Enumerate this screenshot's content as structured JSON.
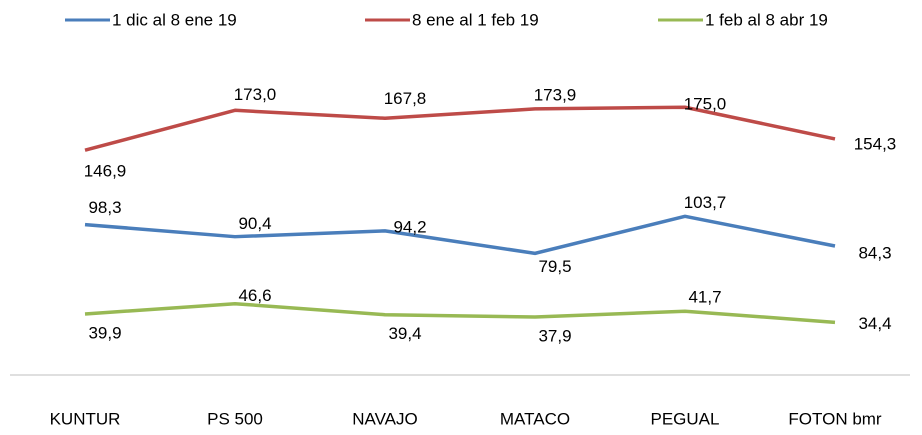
{
  "chart_data": {
    "type": "line",
    "categories": [
      "KUNTUR",
      "PS 500",
      "NAVAJO",
      "MATACO",
      "PEGUAL",
      "FOTON bmr"
    ],
    "series": [
      {
        "name": "1 dic al 8 ene 19",
        "color": "#4a7ebb",
        "values": [
          98.3,
          90.4,
          94.2,
          79.5,
          103.7,
          84.3
        ],
        "value_labels": [
          "98,3",
          "90,4",
          "94,2",
          "79,5",
          "103,7",
          "84,3"
        ]
      },
      {
        "name": "8 ene al 1 feb 19",
        "color": "#be4b48",
        "values": [
          146.9,
          173.0,
          167.8,
          173.9,
          175.0,
          154.3
        ],
        "value_labels": [
          "146,9",
          "173,0",
          "167,8",
          "173,9",
          "175,0",
          "154,3"
        ]
      },
      {
        "name": "1 feb al 8 abr 19",
        "color": "#98b954",
        "values": [
          39.9,
          46.6,
          39.4,
          37.9,
          41.7,
          34.4
        ],
        "value_labels": [
          "39,9",
          "46,6",
          "39,4",
          "37,9",
          "41,7",
          "34,4"
        ]
      }
    ],
    "ylim": [
      0,
      200
    ],
    "legend": "top"
  }
}
